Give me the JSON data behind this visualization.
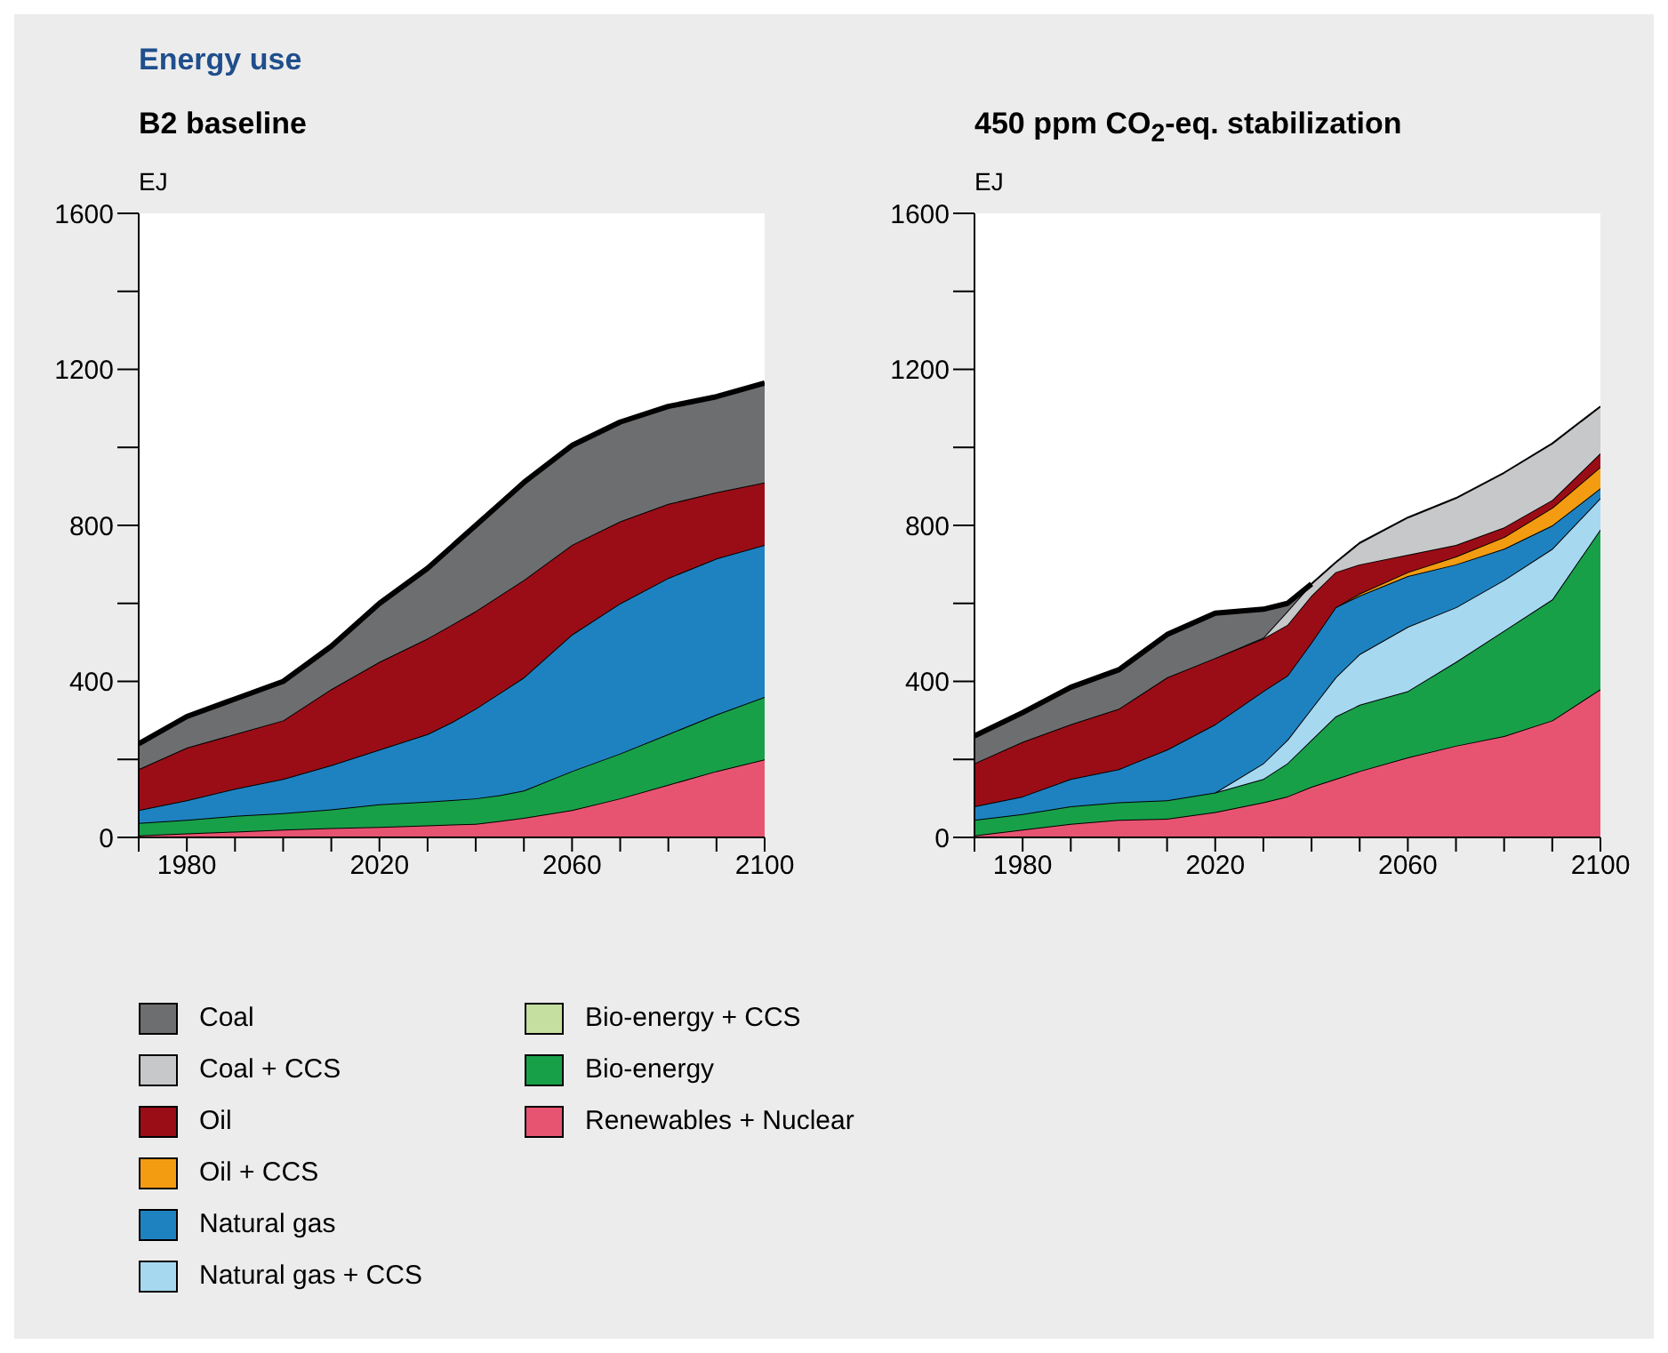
{
  "chart_data": [
    {
      "type": "area",
      "title": "Energy use",
      "subtitle": "B2 baseline",
      "ylabel": "EJ",
      "stacked": true,
      "x": [
        1970,
        1980,
        1990,
        2000,
        2010,
        2020,
        2030,
        2035,
        2040,
        2045,
        2050,
        2060,
        2070,
        2080,
        2090,
        2100
      ],
      "xlim": [
        1970,
        2100
      ],
      "xticks": [
        {
          "value": 1970,
          "label": null
        },
        1980,
        {
          "value": 1990,
          "label": null
        },
        {
          "value": 2000,
          "label": null
        },
        {
          "value": 2010,
          "label": null
        },
        2020,
        {
          "value": 2030,
          "label": null
        },
        {
          "value": 2040,
          "label": null
        },
        {
          "value": 2050,
          "label": null
        },
        2060,
        {
          "value": 2070,
          "label": null
        },
        {
          "value": 2080,
          "label": null
        },
        {
          "value": 2090,
          "label": null
        },
        2100
      ],
      "ylim": [
        0,
        1600
      ],
      "yticks": [
        0,
        {
          "value": 200,
          "label": null
        },
        400,
        {
          "value": 600,
          "label": null
        },
        800,
        {
          "value": 1000,
          "label": null
        },
        1200,
        {
          "value": 1400,
          "label": null
        },
        1600
      ],
      "series": [
        {
          "color": "#e75471",
          "values": [
            5,
            10,
            15,
            20,
            24,
            27,
            31,
            33,
            35,
            42,
            50,
            70,
            100,
            135,
            170,
            200
          ]
        },
        {
          "color": "#18a049",
          "values": [
            32,
            35,
            40,
            42,
            48,
            58,
            61,
            63,
            65,
            66,
            70,
            100,
            115,
            130,
            145,
            160
          ]
        },
        {
          "color": "#1f82c0",
          "values": [
            33,
            50,
            70,
            88,
            113,
            140,
            173,
            199,
            230,
            262,
            290,
            350,
            385,
            400,
            400,
            390
          ]
        },
        {
          "color": "#9b0d16",
          "values": [
            105,
            135,
            140,
            150,
            195,
            225,
            245,
            250,
            250,
            250,
            250,
            230,
            210,
            190,
            170,
            160
          ]
        },
        {
          "color": "#6d6e70",
          "values": [
            65,
            80,
            90,
            100,
            110,
            150,
            180,
            200,
            220,
            235,
            250,
            255,
            255,
            250,
            245,
            255
          ]
        }
      ]
    },
    {
      "type": "area",
      "title": "450 ppm CO$_{2}$-eq. stabilization",
      "ylabel": "EJ",
      "stacked": true,
      "legend": "bottom",
      "x": [
        1970,
        1980,
        1990,
        2000,
        2010,
        2020,
        2030,
        2035,
        2040,
        2045,
        2050,
        2060,
        2070,
        2080,
        2090,
        2100
      ],
      "xlim": [
        1970,
        2100
      ],
      "xticks": [
        {
          "value": 1970,
          "label": null
        },
        1980,
        {
          "value": 1990,
          "label": null
        },
        {
          "value": 2000,
          "label": null
        },
        {
          "value": 2010,
          "label": null
        },
        2020,
        {
          "value": 2030,
          "label": null
        },
        {
          "value": 2040,
          "label": null
        },
        {
          "value": 2050,
          "label": null
        },
        2060,
        {
          "value": 2070,
          "label": null
        },
        {
          "value": 2080,
          "label": null
        },
        {
          "value": 2090,
          "label": null
        },
        2100
      ],
      "ylim": [
        0,
        1600
      ],
      "yticks": [
        0,
        {
          "value": 200,
          "label": null
        },
        400,
        {
          "value": 600,
          "label": null
        },
        800,
        {
          "value": 1000,
          "label": null
        },
        1200,
        {
          "value": 1400,
          "label": null
        },
        1600
      ],
      "series": [
        {
          "name": "Renewables + Nuclear",
          "color": "#e75471",
          "values": [
            5,
            20,
            35,
            45,
            48,
            65,
            90,
            105,
            130,
            150,
            170,
            205,
            235,
            260,
            300,
            380
          ]
        },
        {
          "name": "Bio-energy",
          "color": "#18a049",
          "values": [
            40,
            40,
            45,
            45,
            47,
            50,
            60,
            85,
            120,
            160,
            170,
            170,
            215,
            270,
            310,
            410
          ]
        },
        {
          "name": "Bio-energy + CCS",
          "color": "#c5dfa0",
          "values": [
            null,
            null,
            null,
            null,
            null,
            null,
            null,
            null,
            null,
            null,
            null,
            null,
            null,
            null,
            null,
            null
          ]
        },
        {
          "name": "Natural gas + CCS",
          "color": "#a6d8f0",
          "values": [
            null,
            null,
            null,
            null,
            null,
            0,
            40,
            60,
            80,
            100,
            130,
            165,
            140,
            130,
            130,
            80
          ]
        },
        {
          "name": "Natural gas",
          "color": "#1f82c0",
          "values": [
            35,
            45,
            70,
            85,
            130,
            175,
            185,
            165,
            170,
            180,
            150,
            130,
            110,
            80,
            60,
            25
          ]
        },
        {
          "name": "Oil + CCS",
          "color": "#f39c12",
          "values": [
            null,
            null,
            null,
            null,
            null,
            null,
            null,
            null,
            null,
            0,
            5,
            10,
            20,
            30,
            45,
            55
          ]
        },
        {
          "name": "Oil",
          "color": "#9b0d16",
          "values": [
            110,
            140,
            140,
            155,
            185,
            170,
            135,
            130,
            120,
            90,
            75,
            45,
            30,
            25,
            20,
            35
          ]
        },
        {
          "name": "Coal + CCS",
          "color": "#c7c8ca",
          "values": [
            null,
            null,
            null,
            null,
            null,
            0,
            2,
            35,
            30,
            25,
            55,
            95,
            120,
            140,
            145,
            120
          ]
        },
        {
          "name": "Coal",
          "color": "#6d6e70",
          "values": [
            70,
            75,
            95,
            100,
            110,
            115,
            73,
            20,
            0,
            null,
            null,
            null,
            null,
            null,
            null,
            null
          ]
        }
      ]
    }
  ]
}
